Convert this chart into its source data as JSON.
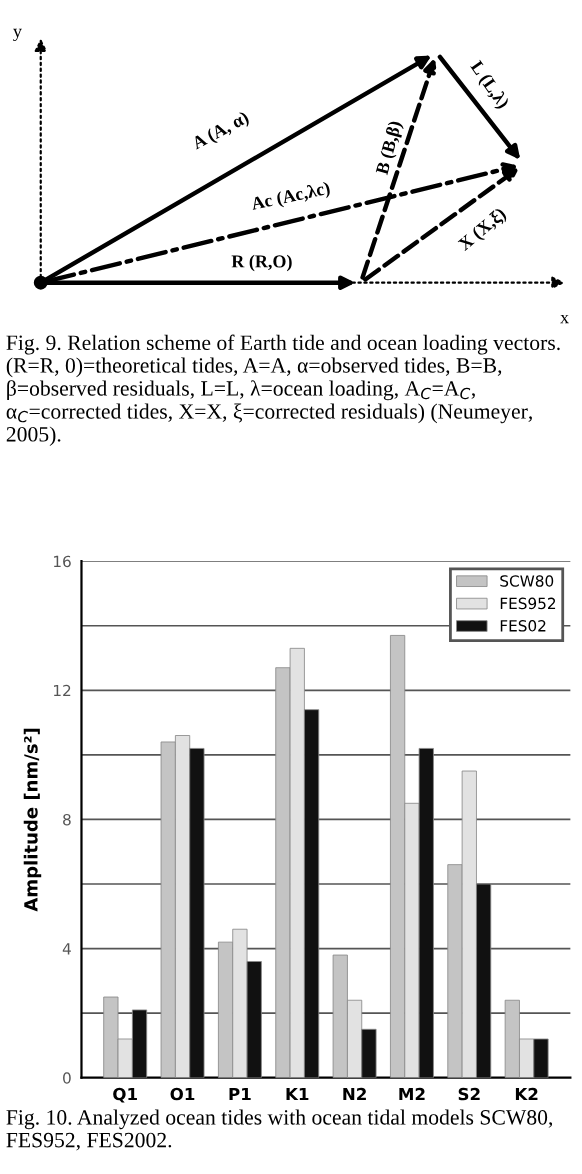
{
  "chart_data": [
    {
      "type": "other",
      "title": "Fig. 9. Relation scheme of Earth tide and ocean loading vectors. (R=R, 0)=theoretical tides, A=A, α=observed tides, B=B, β=observed residuals, L=L, λ=ocean loading, A$_{C}$=A$_{C}$, α$_{C}$=corrected tides, X=X, ξ=corrected residuals) (Neumeyer, 2005).",
      "annotations": [
        "y",
        "x",
        "A (A, α)",
        "B (B,β)",
        "L (L,λ)",
        "Ac (Ac,λc)",
        "R (R,O)",
        "X (X,ξ)"
      ]
    },
    {
      "type": "bar",
      "title": "Fig. 10. Analyzed ocean tides with ocean tidal models SCW80, FES952, FES2002.",
      "ylabel": "Amplitude [nm/s²]",
      "categories": [
        "Q1",
        "O1",
        "P1",
        "K1",
        "N2",
        "M2",
        "S2",
        "K2"
      ],
      "series": [
        {
          "name": "SCW80",
          "color": "#c4c4c4",
          "values": [
            2.5,
            10.4,
            4.2,
            12.7,
            3.8,
            13.7,
            6.6,
            2.4
          ]
        },
        {
          "name": "FES952",
          "color": "#e2e2e2",
          "values": [
            1.2,
            10.6,
            4.6,
            13.3,
            2.4,
            8.5,
            9.5,
            1.2
          ]
        },
        {
          "name": "FES02",
          "color": "#111111",
          "values": [
            2.1,
            10.2,
            3.6,
            11.4,
            1.5,
            10.2,
            6.0,
            1.2
          ]
        }
      ],
      "ylim": [
        0,
        16
      ],
      "yticks": [
        0,
        {
          "value": 2,
          "label": null
        },
        4,
        {
          "value": 6,
          "label": null
        },
        8,
        {
          "value": 10,
          "label": null
        },
        12,
        {
          "value": 14,
          "label": null
        },
        16
      ],
      "grid": "y",
      "legend": "top right"
    }
  ]
}
